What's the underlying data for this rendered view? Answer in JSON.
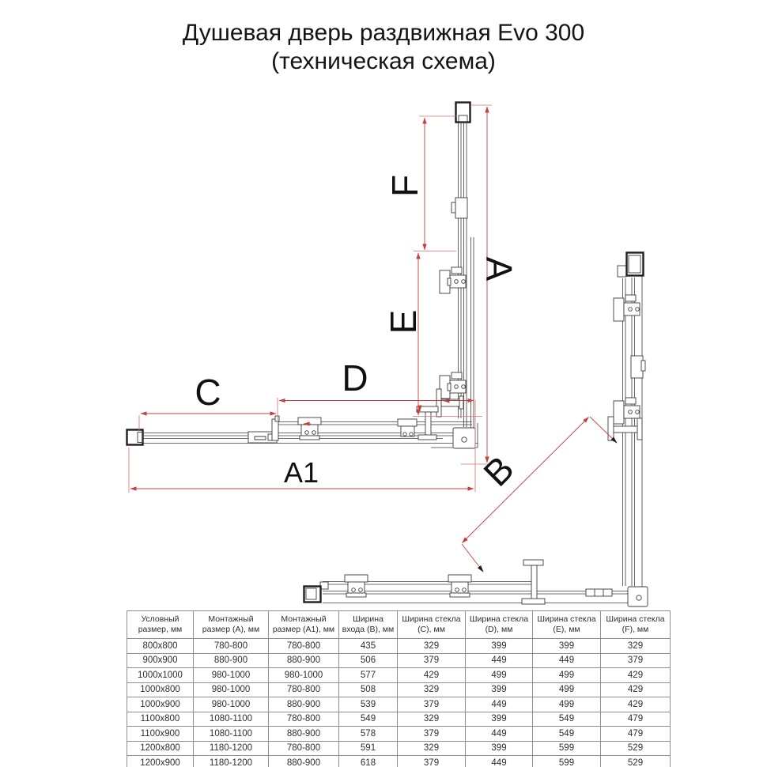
{
  "title": {
    "line1": "Душевая дверь раздвижная Evo 300",
    "line2": "(техническая схема)"
  },
  "diagram": {
    "labels": {
      "A": "A",
      "A1": "A1",
      "B": "B",
      "C": "C",
      "D": "D",
      "E": "E",
      "F": "F"
    },
    "dimension_color": "#c4403f",
    "line_color": "#3c3c3c"
  },
  "table": {
    "headers": [
      "Условный размер, мм",
      "Монтажный размер (A), мм",
      "Монтажный размер (A1), мм",
      "Ширина входа (B), мм",
      "Ширина стекла (C), мм",
      "Ширина стекла (D), мм",
      "Ширина стекла (E), мм",
      "Ширина стекла (F), мм"
    ],
    "rows": [
      [
        "800x800",
        "780-800",
        "780-800",
        "435",
        "329",
        "399",
        "399",
        "329"
      ],
      [
        "900x900",
        "880-900",
        "880-900",
        "506",
        "379",
        "449",
        "449",
        "379"
      ],
      [
        "1000x1000",
        "980-1000",
        "980-1000",
        "577",
        "429",
        "499",
        "499",
        "429"
      ],
      [
        "1000x800",
        "980-1000",
        "780-800",
        "508",
        "329",
        "399",
        "499",
        "429"
      ],
      [
        "1000x900",
        "980-1000",
        "880-900",
        "539",
        "379",
        "449",
        "499",
        "429"
      ],
      [
        "1100x800",
        "1080-1100",
        "780-800",
        "549",
        "329",
        "399",
        "549",
        "479"
      ],
      [
        "1100x900",
        "1080-1100",
        "880-900",
        "578",
        "379",
        "449",
        "549",
        "479"
      ],
      [
        "1200x800",
        "1180-1200",
        "780-800",
        "591",
        "329",
        "399",
        "599",
        "529"
      ],
      [
        "1200x900",
        "1180-1200",
        "880-900",
        "618",
        "379",
        "449",
        "599",
        "529"
      ]
    ]
  }
}
